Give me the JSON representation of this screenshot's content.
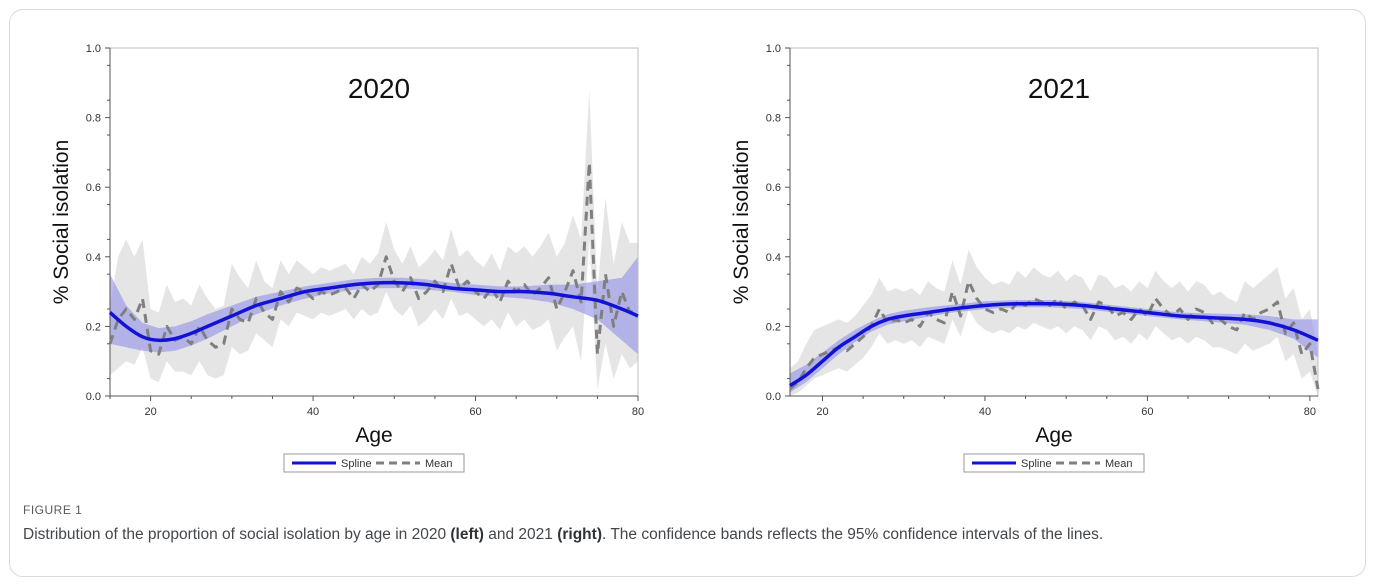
{
  "chart_data": [
    {
      "type": "line",
      "title": "2020",
      "xlabel": "Age",
      "ylabel": "% Social isolation",
      "xlim": [
        15,
        80
      ],
      "ylim": [
        0.0,
        1.0
      ],
      "xticks": [
        20,
        40,
        60,
        80
      ],
      "yticks": [
        "0.0",
        "0.2",
        "0.4",
        "0.6",
        "0.8",
        "1.0"
      ],
      "legend": [
        "Spline",
        "Mean"
      ],
      "legend_position": "bottom-center",
      "series": [
        {
          "name": "Spline",
          "x": [
            15,
            17,
            19,
            21,
            23,
            25,
            27,
            30,
            33,
            36,
            39,
            42,
            45,
            48,
            51,
            54,
            57,
            60,
            63,
            66,
            69,
            72,
            75,
            78,
            80
          ],
          "values": [
            0.24,
            0.2,
            0.17,
            0.16,
            0.165,
            0.18,
            0.2,
            0.23,
            0.26,
            0.28,
            0.3,
            0.31,
            0.32,
            0.325,
            0.325,
            0.32,
            0.31,
            0.305,
            0.3,
            0.3,
            0.295,
            0.285,
            0.275,
            0.25,
            0.23
          ],
          "lower": [
            0.15,
            0.14,
            0.13,
            0.125,
            0.13,
            0.145,
            0.165,
            0.2,
            0.235,
            0.26,
            0.28,
            0.295,
            0.305,
            0.31,
            0.31,
            0.305,
            0.3,
            0.29,
            0.285,
            0.28,
            0.27,
            0.25,
            0.22,
            0.16,
            0.12
          ],
          "upper": [
            0.35,
            0.26,
            0.21,
            0.195,
            0.2,
            0.215,
            0.235,
            0.26,
            0.285,
            0.3,
            0.315,
            0.325,
            0.335,
            0.34,
            0.34,
            0.335,
            0.325,
            0.32,
            0.315,
            0.315,
            0.32,
            0.32,
            0.33,
            0.34,
            0.4
          ]
        },
        {
          "name": "Mean",
          "x": [
            15,
            16,
            17,
            18,
            19,
            20,
            21,
            22,
            23,
            24,
            25,
            26,
            27,
            28,
            29,
            30,
            31,
            32,
            33,
            34,
            35,
            36,
            37,
            38,
            39,
            40,
            41,
            42,
            43,
            44,
            45,
            46,
            47,
            48,
            49,
            50,
            51,
            52,
            53,
            54,
            55,
            56,
            57,
            58,
            59,
            60,
            61,
            62,
            63,
            64,
            65,
            66,
            67,
            68,
            69,
            70,
            71,
            72,
            73,
            74,
            75,
            76,
            77,
            78,
            79,
            80
          ],
          "values": [
            0.15,
            0.22,
            0.25,
            0.22,
            0.28,
            0.13,
            0.12,
            0.2,
            0.16,
            0.17,
            0.15,
            0.2,
            0.16,
            0.14,
            0.15,
            0.25,
            0.22,
            0.21,
            0.28,
            0.24,
            0.22,
            0.3,
            0.27,
            0.31,
            0.3,
            0.28,
            0.3,
            0.29,
            0.3,
            0.31,
            0.28,
            0.32,
            0.3,
            0.32,
            0.4,
            0.33,
            0.3,
            0.34,
            0.28,
            0.3,
            0.33,
            0.3,
            0.38,
            0.31,
            0.33,
            0.3,
            0.28,
            0.31,
            0.27,
            0.33,
            0.3,
            0.32,
            0.29,
            0.31,
            0.34,
            0.25,
            0.3,
            0.36,
            0.27,
            0.67,
            0.12,
            0.35,
            0.2,
            0.3,
            0.24,
            0.25
          ],
          "lower": [
            0.06,
            0.08,
            0.1,
            0.09,
            0.14,
            0.05,
            0.04,
            0.1,
            0.07,
            0.07,
            0.06,
            0.1,
            0.06,
            0.05,
            0.06,
            0.14,
            0.12,
            0.13,
            0.18,
            0.16,
            0.14,
            0.22,
            0.2,
            0.24,
            0.23,
            0.22,
            0.24,
            0.23,
            0.24,
            0.25,
            0.22,
            0.25,
            0.23,
            0.24,
            0.3,
            0.25,
            0.23,
            0.26,
            0.2,
            0.22,
            0.25,
            0.22,
            0.28,
            0.23,
            0.24,
            0.22,
            0.2,
            0.22,
            0.19,
            0.24,
            0.2,
            0.22,
            0.19,
            0.2,
            0.22,
            0.13,
            0.17,
            0.2,
            0.1,
            0.45,
            0.02,
            0.15,
            0.05,
            0.12,
            0.08,
            0.1
          ],
          "upper": [
            0.26,
            0.4,
            0.45,
            0.4,
            0.45,
            0.25,
            0.24,
            0.32,
            0.27,
            0.28,
            0.26,
            0.32,
            0.28,
            0.25,
            0.26,
            0.38,
            0.34,
            0.31,
            0.39,
            0.33,
            0.31,
            0.39,
            0.35,
            0.39,
            0.37,
            0.35,
            0.37,
            0.36,
            0.37,
            0.38,
            0.35,
            0.4,
            0.38,
            0.41,
            0.5,
            0.42,
            0.38,
            0.43,
            0.37,
            0.39,
            0.42,
            0.39,
            0.48,
            0.4,
            0.42,
            0.39,
            0.37,
            0.41,
            0.36,
            0.43,
            0.41,
            0.43,
            0.4,
            0.43,
            0.47,
            0.4,
            0.44,
            0.52,
            0.45,
            0.88,
            0.3,
            0.57,
            0.38,
            0.5,
            0.44,
            0.44
          ]
        }
      ]
    },
    {
      "type": "line",
      "title": "2021",
      "xlabel": "Age",
      "ylabel": "% Social isolation",
      "xlim": [
        16,
        81
      ],
      "ylim": [
        0.0,
        1.0
      ],
      "xticks": [
        20,
        40,
        60,
        80
      ],
      "yticks": [
        "0.0",
        "0.2",
        "0.4",
        "0.6",
        "0.8",
        "1.0"
      ],
      "legend": [
        "Spline",
        "Mean"
      ],
      "legend_position": "bottom-center",
      "series": [
        {
          "name": "Spline",
          "x": [
            16,
            18,
            20,
            22,
            24,
            26,
            28,
            30,
            33,
            36,
            40,
            44,
            48,
            52,
            56,
            60,
            64,
            68,
            72,
            75,
            78,
            81
          ],
          "values": [
            0.03,
            0.06,
            0.1,
            0.14,
            0.17,
            0.2,
            0.22,
            0.23,
            0.24,
            0.25,
            0.26,
            0.265,
            0.265,
            0.26,
            0.25,
            0.24,
            0.23,
            0.225,
            0.22,
            0.21,
            0.19,
            0.16
          ],
          "lower": [
            0.01,
            0.04,
            0.08,
            0.12,
            0.155,
            0.185,
            0.205,
            0.215,
            0.228,
            0.24,
            0.25,
            0.255,
            0.255,
            0.25,
            0.24,
            0.23,
            0.22,
            0.213,
            0.205,
            0.19,
            0.165,
            0.11
          ],
          "upper": [
            0.065,
            0.09,
            0.125,
            0.16,
            0.19,
            0.215,
            0.235,
            0.245,
            0.255,
            0.262,
            0.272,
            0.276,
            0.276,
            0.27,
            0.26,
            0.25,
            0.24,
            0.237,
            0.235,
            0.23,
            0.22,
            0.22
          ]
        },
        {
          "name": "Mean",
          "x": [
            16,
            17,
            18,
            19,
            20,
            21,
            22,
            23,
            24,
            25,
            26,
            27,
            28,
            29,
            30,
            31,
            32,
            33,
            34,
            35,
            36,
            37,
            38,
            39,
            40,
            41,
            42,
            43,
            44,
            45,
            46,
            47,
            48,
            49,
            50,
            51,
            52,
            53,
            54,
            55,
            56,
            57,
            58,
            59,
            60,
            61,
            62,
            63,
            64,
            65,
            66,
            67,
            68,
            69,
            70,
            71,
            72,
            73,
            74,
            75,
            76,
            77,
            78,
            79,
            80,
            81
          ],
          "values": [
            0.02,
            0.04,
            0.08,
            0.11,
            0.12,
            0.13,
            0.14,
            0.13,
            0.15,
            0.17,
            0.2,
            0.25,
            0.21,
            0.22,
            0.21,
            0.22,
            0.2,
            0.24,
            0.22,
            0.21,
            0.3,
            0.23,
            0.33,
            0.28,
            0.25,
            0.24,
            0.25,
            0.24,
            0.27,
            0.26,
            0.28,
            0.27,
            0.26,
            0.28,
            0.25,
            0.27,
            0.26,
            0.22,
            0.27,
            0.26,
            0.23,
            0.24,
            0.22,
            0.25,
            0.23,
            0.28,
            0.25,
            0.23,
            0.25,
            0.22,
            0.25,
            0.24,
            0.21,
            0.22,
            0.2,
            0.19,
            0.24,
            0.22,
            0.24,
            0.25,
            0.27,
            0.18,
            0.21,
            0.12,
            0.15,
            0.02
          ],
          "lower": [
            0.0,
            0.01,
            0.03,
            0.05,
            0.06,
            0.07,
            0.08,
            0.07,
            0.09,
            0.11,
            0.14,
            0.18,
            0.15,
            0.16,
            0.15,
            0.16,
            0.14,
            0.17,
            0.16,
            0.15,
            0.22,
            0.17,
            0.25,
            0.21,
            0.19,
            0.18,
            0.19,
            0.18,
            0.2,
            0.19,
            0.21,
            0.2,
            0.19,
            0.2,
            0.18,
            0.2,
            0.19,
            0.16,
            0.2,
            0.19,
            0.16,
            0.17,
            0.15,
            0.18,
            0.16,
            0.2,
            0.18,
            0.16,
            0.17,
            0.15,
            0.17,
            0.16,
            0.14,
            0.14,
            0.13,
            0.12,
            0.15,
            0.13,
            0.14,
            0.15,
            0.17,
            0.1,
            0.12,
            0.05,
            0.07,
            0.0
          ],
          "upper": [
            0.08,
            0.1,
            0.15,
            0.19,
            0.2,
            0.21,
            0.22,
            0.21,
            0.23,
            0.26,
            0.29,
            0.34,
            0.3,
            0.31,
            0.3,
            0.31,
            0.29,
            0.33,
            0.31,
            0.3,
            0.39,
            0.32,
            0.42,
            0.37,
            0.34,
            0.32,
            0.33,
            0.32,
            0.36,
            0.34,
            0.37,
            0.35,
            0.34,
            0.36,
            0.33,
            0.35,
            0.34,
            0.3,
            0.35,
            0.34,
            0.31,
            0.32,
            0.3,
            0.33,
            0.31,
            0.36,
            0.33,
            0.31,
            0.33,
            0.3,
            0.33,
            0.32,
            0.29,
            0.3,
            0.28,
            0.27,
            0.33,
            0.31,
            0.33,
            0.35,
            0.37,
            0.28,
            0.31,
            0.22,
            0.25,
            0.12
          ]
        }
      ]
    }
  ],
  "caption": {
    "label": "FIGURE 1",
    "text_1": "Distribution of the proportion of social isolation by age in 2020 ",
    "bold_1": "(left)",
    "text_2": " and 2021 ",
    "bold_2": "(right)",
    "text_3": ". The confidence bands reflects the 95% confidence intervals of the lines."
  },
  "colors": {
    "spline": "#1212d6",
    "spline_band": "#8f8fe6",
    "mean": "#7f7f7f",
    "mean_band": "#cfcfcf",
    "axis": "#555555"
  }
}
